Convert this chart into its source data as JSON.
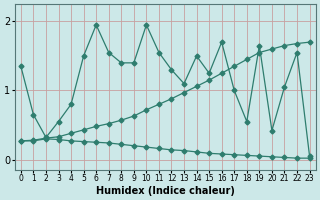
{
  "xlabel": "Humidex (Indice chaleur)",
  "bg_color": "#cce8e8",
  "grid_color": "#c8a0a0",
  "line_color": "#2e7d6e",
  "xlim": [
    -0.5,
    23.5
  ],
  "ylim": [
    -0.15,
    2.25
  ],
  "yticks": [
    0,
    1,
    2
  ],
  "xticks": [
    0,
    1,
    2,
    3,
    4,
    5,
    6,
    7,
    8,
    9,
    10,
    11,
    12,
    13,
    14,
    15,
    16,
    17,
    18,
    19,
    20,
    21,
    22,
    23
  ],
  "line1_x": [
    0,
    1,
    2,
    3,
    4,
    5,
    6,
    7,
    8,
    9,
    10,
    11,
    12,
    13,
    14,
    15,
    16,
    17,
    18,
    19,
    20,
    21,
    22,
    23
  ],
  "line1_y": [
    1.35,
    0.65,
    0.32,
    0.55,
    0.8,
    1.5,
    1.95,
    1.55,
    1.4,
    1.4,
    1.95,
    1.55,
    1.3,
    1.1,
    1.5,
    1.25,
    1.7,
    1.0,
    0.55,
    1.65,
    0.42,
    1.05,
    1.55,
    0.05
  ],
  "line2_x": [
    0,
    1,
    2,
    3,
    4,
    5,
    6,
    7,
    8,
    9,
    10,
    11,
    12,
    13,
    14,
    15,
    16,
    17,
    18,
    19,
    20,
    21,
    22,
    23
  ],
  "line2_y": [
    0.27,
    0.28,
    0.31,
    0.33,
    0.38,
    0.43,
    0.48,
    0.52,
    0.57,
    0.63,
    0.72,
    0.8,
    0.88,
    0.97,
    1.06,
    1.15,
    1.25,
    1.35,
    1.45,
    1.55,
    1.6,
    1.65,
    1.68,
    1.7
  ],
  "line3_x": [
    0,
    1,
    2,
    3,
    4,
    5,
    6,
    7,
    8,
    9,
    10,
    11,
    12,
    13,
    14,
    15,
    16,
    17,
    18,
    19,
    20,
    21,
    22,
    23
  ],
  "line3_y": [
    0.27,
    0.27,
    0.3,
    0.29,
    0.27,
    0.26,
    0.25,
    0.24,
    0.22,
    0.2,
    0.18,
    0.16,
    0.14,
    0.13,
    0.11,
    0.09,
    0.08,
    0.07,
    0.06,
    0.05,
    0.04,
    0.03,
    0.02,
    0.02
  ]
}
